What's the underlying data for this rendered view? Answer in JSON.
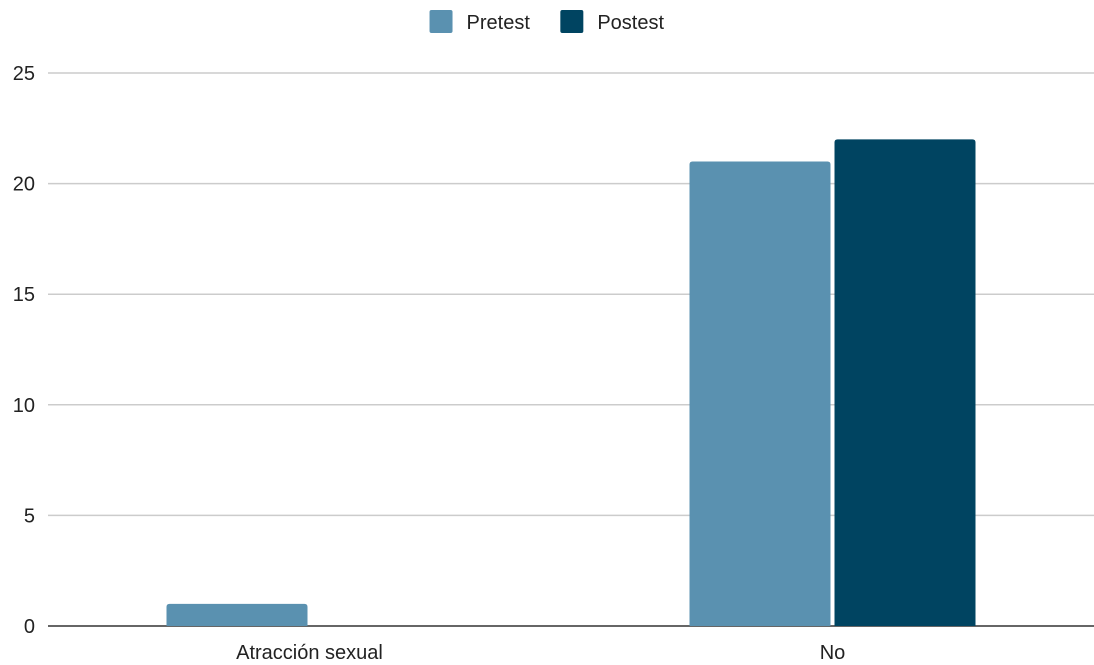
{
  "chart_data": {
    "type": "bar",
    "categories": [
      "Atracción sexual",
      "No"
    ],
    "series": [
      {
        "name": "Pretest",
        "values": [
          1,
          21
        ],
        "color": "#5a91b0"
      },
      {
        "name": "Postest",
        "values": [
          0,
          22
        ],
        "color": "#004461"
      }
    ],
    "title": "",
    "xlabel": "",
    "ylabel": "",
    "ylim": [
      0,
      25
    ],
    "yticks": [
      0,
      5,
      10,
      15,
      20,
      25
    ],
    "grid": true,
    "legend_position": "top-center"
  }
}
